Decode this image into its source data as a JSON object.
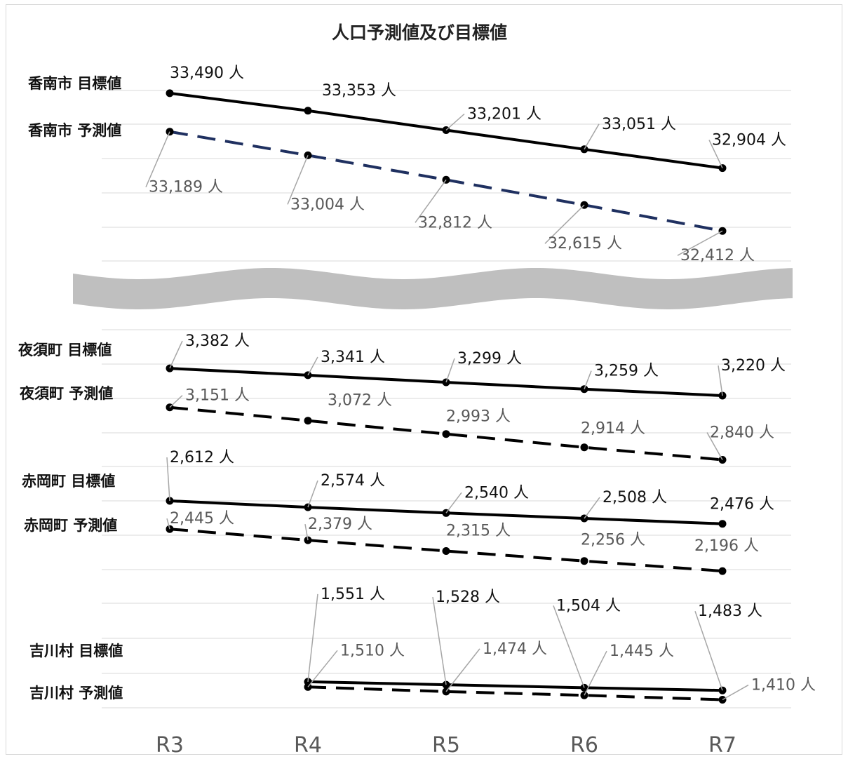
{
  "chart_data": {
    "type": "line",
    "title": "人口予測値及び目標値",
    "categories": [
      "R3",
      "R4",
      "R5",
      "R6",
      "R7"
    ],
    "unit_suffix": " 人",
    "grid": true,
    "axis_break_between_groups": true,
    "groups": [
      {
        "name": "香南市",
        "series": [
          {
            "name": "香南市 目標値",
            "style": "solid",
            "color": "#000000",
            "values": [
              33490,
              33353,
              33201,
              33051,
              32904
            ],
            "labels": [
              "33,490 人",
              "33,353 人",
              "33,201 人",
              "33,051 人",
              "32,904 人"
            ]
          },
          {
            "name": "香南市 予測値",
            "style": "dashed",
            "color": "#1f3060",
            "values": [
              33189,
              33004,
              32812,
              32615,
              32412
            ],
            "labels": [
              "33,189 人",
              "33,004 人",
              "32,812 人",
              "32,615 人",
              "32,412 人"
            ]
          }
        ]
      },
      {
        "name": "夜須町",
        "series": [
          {
            "name": "夜須町 目標値",
            "style": "solid",
            "color": "#000000",
            "values": [
              3382,
              3341,
              3299,
              3259,
              3220
            ],
            "labels": [
              "3,382 人",
              "3,341 人",
              "3,299 人",
              "3,259 人",
              "3,220 人"
            ]
          },
          {
            "name": "夜須町 予測値",
            "style": "dashed",
            "color": "#000000",
            "values": [
              3151,
              3072,
              2993,
              2914,
              2840
            ],
            "labels": [
              "3,151 人",
              "3,072 人",
              "2,993 人",
              "2,914 人",
              "2,840 人"
            ]
          }
        ]
      },
      {
        "name": "赤岡町",
        "series": [
          {
            "name": "赤岡町 目標値",
            "style": "solid",
            "color": "#000000",
            "values": [
              2612,
              2574,
              2540,
              2508,
              2476
            ],
            "labels": [
              "2,612 人",
              "2,574 人",
              "2,540 人",
              "2,508 人",
              "2,476 人"
            ]
          },
          {
            "name": "赤岡町 予測値",
            "style": "dashed",
            "color": "#000000",
            "values": [
              2445,
              2379,
              2315,
              2256,
              2196
            ],
            "labels": [
              "2,445 人",
              "2,379 人",
              "2,315 人",
              "2,256 人",
              "2,196 人"
            ]
          }
        ]
      },
      {
        "name": "吉川村",
        "series": [
          {
            "name": "吉川村 目標値",
            "style": "solid",
            "color": "#000000",
            "values": [
              null,
              1551,
              1528,
              1504,
              1483
            ],
            "labels": [
              null,
              "1,551 人",
              "1,528 人",
              "1,504 人",
              "1,483 人"
            ]
          },
          {
            "name": "吉川村 予測値",
            "style": "dashed",
            "color": "#000000",
            "values": [
              null,
              1510,
              1474,
              1445,
              1410
            ],
            "labels": [
              null,
              "1,510 人",
              "1,474 人",
              "1,445 人",
              "1,410 人"
            ]
          }
        ]
      }
    ]
  }
}
